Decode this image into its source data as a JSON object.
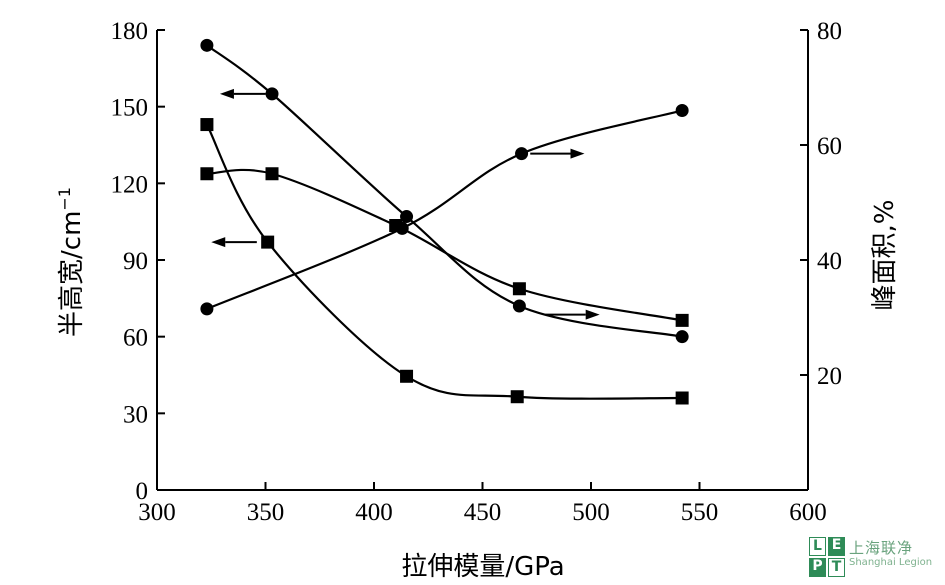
{
  "chart_data": {
    "type": "line",
    "xlabel": "拉伸模量/GPa",
    "ylabel": "半高宽/cm",
    "ylabel_sup": "−1",
    "y2label": "峰面积,%",
    "xlim": [
      300,
      600
    ],
    "ylim": [
      0,
      180
    ],
    "y2lim": [
      0,
      80
    ],
    "xticks": [
      300,
      350,
      400,
      450,
      500,
      550,
      600
    ],
    "yticks": [
      0,
      30,
      60,
      90,
      120,
      150,
      180
    ],
    "y2ticks": [
      20,
      40,
      60,
      80
    ],
    "grid": false,
    "series": [
      {
        "axis": "left",
        "marker": "circle",
        "points": [
          [
            323,
            174
          ],
          [
            353,
            155
          ],
          [
            415,
            107
          ],
          [
            467,
            72
          ],
          [
            542,
            60
          ]
        ]
      },
      {
        "axis": "left",
        "marker": "square",
        "points": [
          [
            323,
            143
          ],
          [
            351,
            97
          ],
          [
            415,
            44.5
          ],
          [
            466,
            36.5
          ],
          [
            542,
            36
          ]
        ]
      },
      {
        "axis": "right",
        "marker": "circle",
        "points": [
          [
            323,
            31.5
          ],
          [
            413,
            45.5
          ],
          [
            468,
            58.5
          ],
          [
            542,
            66
          ]
        ]
      },
      {
        "axis": "right",
        "marker": "square",
        "points": [
          [
            323,
            55
          ],
          [
            353,
            55
          ],
          [
            410,
            46
          ],
          [
            467,
            35
          ],
          [
            542,
            29.5
          ]
        ]
      }
    ],
    "arrows": [
      {
        "direction": "left",
        "axis": "left",
        "x_from": 350,
        "x_to": 329,
        "y": 155
      },
      {
        "direction": "left",
        "axis": "left",
        "x_from": 346,
        "x_to": 325,
        "y": 97
      },
      {
        "direction": "right",
        "axis": "right",
        "x_from": 472,
        "x_to": 497,
        "y": 58.5
      },
      {
        "direction": "right",
        "axis": "right",
        "x_from": 479,
        "x_to": 504,
        "y": 30.5
      }
    ]
  },
  "watermark": {
    "logo_letters": [
      "L",
      "E",
      "P",
      "T"
    ],
    "text": "上海联净",
    "subtext": "Shanghai Legion"
  }
}
